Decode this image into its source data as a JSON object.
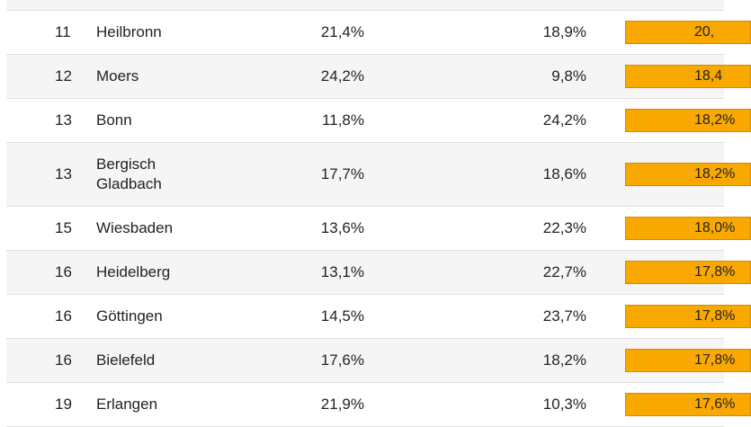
{
  "accent_color": "#f9a800",
  "rows": [
    {
      "rank": "11",
      "city": "Heilbronn",
      "v1": "21,4%",
      "v2": "18,9%",
      "bar": "20,",
      "h": 48
    },
    {
      "rank": "12",
      "city": "Moers",
      "v1": "24,2%",
      "v2": "9,8%",
      "bar": "18,4",
      "h": 48
    },
    {
      "rank": "13",
      "city": "Bonn",
      "v1": "11,8%",
      "v2": "24,2%",
      "bar": "18,2%",
      "h": 48
    },
    {
      "rank": "13",
      "city": "Bergisch Gladbach",
      "v1": "17,7%",
      "v2": "18,6%",
      "bar": "18,2%",
      "h": 70
    },
    {
      "rank": "15",
      "city": "Wiesbaden",
      "v1": "13,6%",
      "v2": "22,3%",
      "bar": "18,0%",
      "h": 48
    },
    {
      "rank": "16",
      "city": "Heidelberg",
      "v1": "13,1%",
      "v2": "22,7%",
      "bar": "17,8%",
      "h": 48
    },
    {
      "rank": "16",
      "city": "Göttingen",
      "v1": "14,5%",
      "v2": "23,7%",
      "bar": "17,8%",
      "h": 48
    },
    {
      "rank": "16",
      "city": "Bielefeld",
      "v1": "17,6%",
      "v2": "18,2%",
      "bar": "17,8%",
      "h": 48
    },
    {
      "rank": "19",
      "city": "Erlangen",
      "v1": "21,9%",
      "v2": "10,3%",
      "bar": "17,6%",
      "h": 48
    }
  ]
}
